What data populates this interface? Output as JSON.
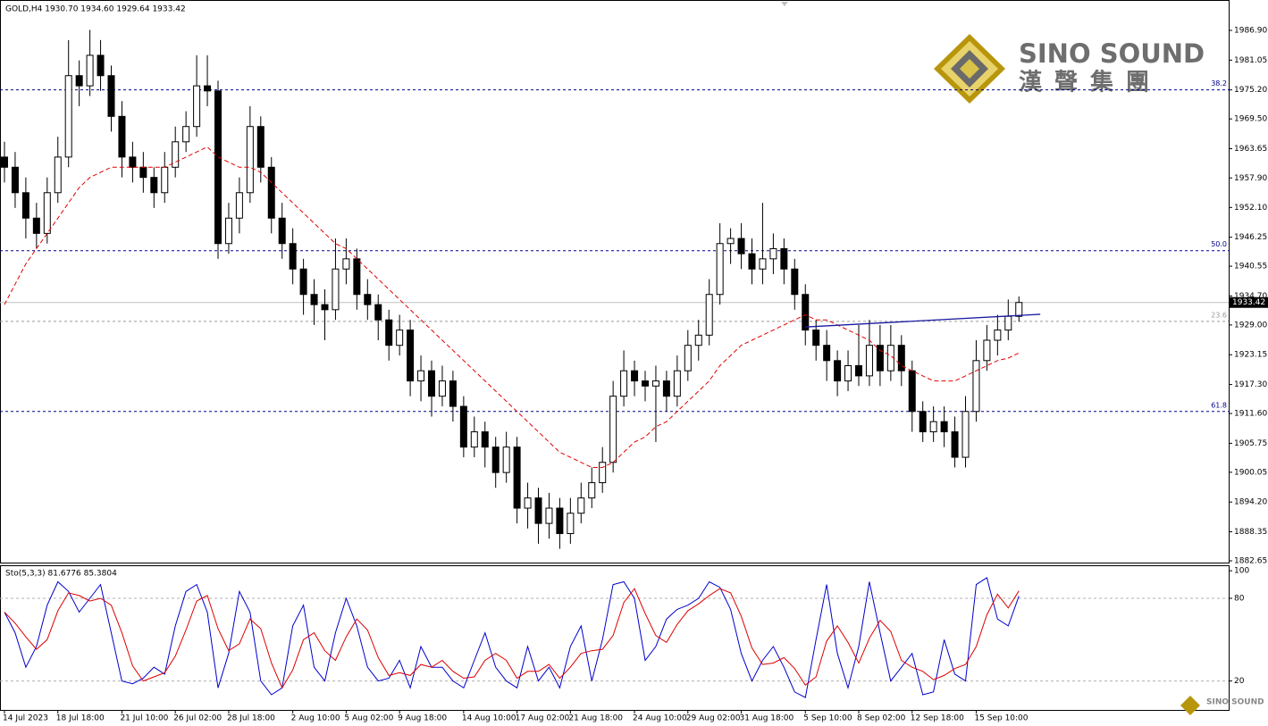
{
  "chart_data": [
    {
      "type": "candlestick",
      "title": "GOLD,H4  1930.70 1934.60 1929.64 1933.42",
      "categories": [
        "14 Jul 2023",
        null,
        null,
        null,
        null,
        "18 Jul 18:00",
        null,
        null,
        null,
        null,
        null,
        "21 Jul 10:00",
        null,
        null,
        null,
        null,
        "26 Jul 02:00",
        null,
        null,
        null,
        null,
        "28 Jul 18:00",
        null,
        null,
        null,
        null,
        null,
        "2 Aug 10:00",
        null,
        null,
        null,
        null,
        "5 Aug 02:00",
        null,
        null,
        null,
        null,
        "9 Aug 18:00",
        null,
        null,
        null,
        null,
        null,
        "14 Aug 10:00",
        null,
        null,
        null,
        null,
        "17 Aug 02:00",
        null,
        null,
        null,
        null,
        "21 Aug 18:00",
        null,
        null,
        null,
        null,
        null,
        "24 Aug 10:00",
        null,
        null,
        null,
        null,
        "29 Aug 02:00",
        null,
        null,
        null,
        null,
        "31 Aug 18:00",
        null,
        null,
        null,
        null,
        null,
        "5 Sep 10:00",
        null,
        null,
        null,
        null,
        "8 Sep 02:00",
        null,
        null,
        null,
        null,
        "12 Sep 18:00",
        null,
        null,
        null,
        null,
        null,
        "15 Sep 10:00",
        null,
        null,
        null,
        null
      ],
      "candles": [
        [
          1962,
          1965,
          1957,
          1960
        ],
        [
          1960,
          1963,
          1952,
          1955
        ],
        [
          1955,
          1958,
          1946,
          1950
        ],
        [
          1950,
          1953,
          1944,
          1947
        ],
        [
          1947,
          1958,
          1945,
          1955
        ],
        [
          1955,
          1966,
          1953,
          1962
        ],
        [
          1962,
          1985,
          1960,
          1978
        ],
        [
          1978,
          1981,
          1972,
          1976
        ],
        [
          1976,
          1987,
          1974,
          1982
        ],
        [
          1982,
          1985,
          1975,
          1978
        ],
        [
          1978,
          1980,
          1967,
          1970
        ],
        [
          1970,
          1973,
          1958,
          1962
        ],
        [
          1962,
          1965,
          1957,
          1960
        ],
        [
          1960,
          1963,
          1955,
          1958
        ],
        [
          1958,
          1960,
          1952,
          1955
        ],
        [
          1955,
          1963,
          1953,
          1960
        ],
        [
          1960,
          1968,
          1958,
          1965
        ],
        [
          1965,
          1971,
          1963,
          1968
        ],
        [
          1968,
          1982,
          1966,
          1976
        ],
        [
          1976,
          1982,
          1972,
          1975
        ],
        [
          1975,
          1977,
          1942,
          1945
        ],
        [
          1945,
          1953,
          1943,
          1950
        ],
        [
          1950,
          1958,
          1947,
          1955
        ],
        [
          1955,
          1972,
          1953,
          1968
        ],
        [
          1968,
          1970,
          1957,
          1960
        ],
        [
          1960,
          1962,
          1947,
          1950
        ],
        [
          1950,
          1953,
          1942,
          1945
        ],
        [
          1945,
          1948,
          1937,
          1940
        ],
        [
          1940,
          1942,
          1931,
          1935
        ],
        [
          1935,
          1938,
          1929,
          1933
        ],
        [
          1933,
          1936,
          1926,
          1932
        ],
        [
          1932,
          1946,
          1930,
          1940
        ],
        [
          1940,
          1946,
          1937,
          1942
        ],
        [
          1942,
          1944,
          1932,
          1935
        ],
        [
          1935,
          1938,
          1930,
          1933
        ],
        [
          1933,
          1935,
          1926,
          1930
        ],
        [
          1930,
          1932,
          1922,
          1925
        ],
        [
          1925,
          1931,
          1923,
          1928
        ],
        [
          1928,
          1930,
          1915,
          1918
        ],
        [
          1918,
          1923,
          1914,
          1920
        ],
        [
          1920,
          1922,
          1911,
          1915
        ],
        [
          1915,
          1921,
          1913,
          1918
        ],
        [
          1918,
          1920,
          1910,
          1913
        ],
        [
          1913,
          1915,
          1903,
          1905
        ],
        [
          1905,
          1911,
          1903,
          1908
        ],
        [
          1908,
          1910,
          1901,
          1905
        ],
        [
          1905,
          1907,
          1897,
          1900
        ],
        [
          1900,
          1908,
          1898,
          1905
        ],
        [
          1905,
          1907,
          1890,
          1893
        ],
        [
          1893,
          1898,
          1889,
          1895
        ],
        [
          1895,
          1897,
          1886,
          1890
        ],
        [
          1890,
          1896,
          1887,
          1893
        ],
        [
          1893,
          1895,
          1885,
          1888
        ],
        [
          1888,
          1895,
          1886,
          1892
        ],
        [
          1892,
          1898,
          1890,
          1895
        ],
        [
          1895,
          1901,
          1893,
          1898
        ],
        [
          1898,
          1905,
          1896,
          1902
        ],
        [
          1902,
          1918,
          1900,
          1915
        ],
        [
          1915,
          1924,
          1913,
          1920
        ],
        [
          1920,
          1922,
          1915,
          1918
        ],
        [
          1918,
          1920,
          1914,
          1917
        ],
        [
          1917,
          1921,
          1906,
          1918
        ],
        [
          1918,
          1920,
          1912,
          1915
        ],
        [
          1915,
          1923,
          1913,
          1920
        ],
        [
          1920,
          1928,
          1918,
          1925
        ],
        [
          1925,
          1930,
          1922,
          1927
        ],
        [
          1927,
          1938,
          1925,
          1935
        ],
        [
          1935,
          1949,
          1933,
          1945
        ],
        [
          1945,
          1948,
          1941,
          1946
        ],
        [
          1946,
          1949,
          1940,
          1943
        ],
        [
          1943,
          1946,
          1937,
          1940
        ],
        [
          1940,
          1953,
          1937,
          1942
        ],
        [
          1942,
          1947,
          1939,
          1944
        ],
        [
          1944,
          1946,
          1937,
          1940
        ],
        [
          1940,
          1942,
          1932,
          1935
        ],
        [
          1935,
          1937,
          1925,
          1928
        ],
        [
          1928,
          1930,
          1922,
          1925
        ],
        [
          1925,
          1928,
          1918,
          1922
        ],
        [
          1922,
          1924,
          1915,
          1918
        ],
        [
          1918,
          1924,
          1916,
          1921
        ],
        [
          1921,
          1929,
          1917,
          1919
        ],
        [
          1919,
          1930,
          1917,
          1925
        ],
        [
          1925,
          1929,
          1917,
          1920
        ],
        [
          1920,
          1929,
          1918,
          1925
        ],
        [
          1925,
          1927,
          1917,
          1920
        ],
        [
          1920,
          1922,
          1908,
          1912
        ],
        [
          1912,
          1914,
          1906,
          1908
        ],
        [
          1908,
          1913,
          1906,
          1910
        ],
        [
          1910,
          1913,
          1905,
          1908
        ],
        [
          1908,
          1911,
          1901,
          1903
        ],
        [
          1903,
          1915,
          1901,
          1912
        ],
        [
          1912,
          1926,
          1910,
          1922
        ],
        [
          1922,
          1929,
          1920,
          1926
        ],
        [
          1926,
          1931,
          1923,
          1928
        ],
        [
          1928,
          1934,
          1926,
          1930.7
        ],
        [
          1930.7,
          1934.6,
          1929.64,
          1933.42
        ]
      ],
      "ma": {
        "color": "#e00000",
        "values": [
          1933,
          1937,
          1941,
          1944,
          1947,
          1950,
          1953,
          1956,
          1958,
          1959,
          1960,
          1960,
          1960,
          1960,
          1960,
          1960,
          1961,
          1962,
          1963,
          1964,
          1962,
          1961,
          1960,
          1960,
          1959,
          1957,
          1955,
          1953,
          1951,
          1949,
          1947,
          1945,
          1944,
          1942,
          1940,
          1938,
          1936,
          1934,
          1932,
          1930,
          1928,
          1926,
          1924,
          1922,
          1920,
          1918,
          1916,
          1914,
          1912,
          1910,
          1908,
          1906,
          1904,
          1903,
          1902,
          1901,
          1901,
          1902,
          1904,
          1906,
          1907,
          1909,
          1910,
          1912,
          1914,
          1916,
          1918,
          1921,
          1923,
          1925,
          1926,
          1927,
          1928,
          1929,
          1930,
          1931,
          1930,
          1930,
          1929,
          1928,
          1927,
          1926,
          1924,
          1923,
          1921,
          1920,
          1919,
          1918,
          1918,
          1918,
          1919,
          1920,
          1921,
          1922,
          1922.5,
          1923.5
        ]
      },
      "ylim": [
        1882.3,
        1992.87
      ],
      "yticks": [
        {
          "value": 1986.9,
          "label": "1986.90"
        },
        1981.05,
        {
          "value": 1975.2,
          "label": "1975.20"
        },
        {
          "value": 1969.5,
          "label": "1969.50"
        },
        1963.65,
        {
          "value": 1957.9,
          "label": "1957.90"
        },
        {
          "value": 1952.1,
          "label": "1952.10"
        },
        1946.25,
        1940.55,
        {
          "value": 1934.7,
          "label": "1934.70"
        },
        {
          "value": 1929,
          "label": "1929.00"
        },
        1923.15,
        {
          "value": 1917.3,
          "label": "1917.30"
        },
        {
          "value": 1911.6,
          "label": "1911.60"
        },
        1905.75,
        1900.05,
        {
          "value": 1894.2,
          "label": "1894.20"
        },
        1888.35,
        1882.65
      ],
      "levels": [
        {
          "label": "38.2",
          "value": 1975.2,
          "color": "#00008b"
        },
        {
          "label": "50.0",
          "value": 1943.6,
          "color": "#00008b"
        },
        {
          "label": "23.6",
          "value": 1929.7,
          "color": "#9a9a9a"
        },
        {
          "label": "61.8",
          "value": 1912,
          "color": "#00008b"
        }
      ],
      "current_price": 1933.42,
      "trend_line": {
        "color": "#1a1aa0",
        "x": [
          75,
          97
        ],
        "y": [
          1928.6,
          1931.1
        ]
      },
      "watermark": {
        "name": "SINO SOUND",
        "chinese": "漢聲集團"
      }
    },
    {
      "type": "line",
      "title": "Sto(5,3,3) 81.6776 85.3804",
      "series": [
        {
          "color": "#0000cc",
          "values": [
            70,
            55,
            30,
            45,
            75,
            92,
            85,
            70,
            80,
            90,
            55,
            20,
            18,
            22,
            30,
            25,
            60,
            85,
            90,
            70,
            15,
            40,
            85,
            70,
            20,
            10,
            15,
            60,
            75,
            30,
            20,
            55,
            80,
            60,
            30,
            20,
            22,
            35,
            15,
            45,
            30,
            30,
            20,
            15,
            35,
            55,
            30,
            20,
            15,
            45,
            20,
            30,
            15,
            45,
            60,
            20,
            50,
            90,
            92,
            80,
            35,
            45,
            65,
            72,
            75,
            80,
            92,
            88,
            72,
            40,
            20,
            35,
            45,
            30,
            12,
            8,
            50,
            90,
            40,
            15,
            45,
            92,
            55,
            20,
            30,
            40,
            10,
            12,
            50,
            25,
            20,
            90,
            95,
            65,
            60,
            81.6776
          ]
        },
        {
          "color": "#dd0000",
          "values": [
            70,
            62,
            52,
            43,
            50,
            71,
            84,
            82,
            78,
            80,
            75,
            55,
            31,
            20,
            23,
            26,
            38,
            57,
            78,
            82,
            58,
            42,
            47,
            65,
            58,
            33,
            15,
            28,
            50,
            55,
            42,
            35,
            52,
            65,
            57,
            37,
            24,
            26,
            24,
            32,
            30,
            35,
            27,
            22,
            23,
            35,
            40,
            35,
            22,
            27,
            27,
            32,
            22,
            30,
            40,
            42,
            43,
            53,
            77,
            87,
            69,
            53,
            48,
            61,
            71,
            76,
            82,
            87,
            84,
            67,
            44,
            32,
            33,
            37,
            29,
            17,
            23,
            49,
            60,
            48,
            33,
            51,
            64,
            56,
            35,
            30,
            27,
            21,
            24,
            29,
            32,
            45,
            68,
            83,
            73,
            85.3804
          ]
        }
      ],
      "ylim": [
        -1,
        104
      ],
      "yticks": [
        100,
        80,
        20
      ],
      "levels": [
        80,
        20
      ]
    }
  ]
}
